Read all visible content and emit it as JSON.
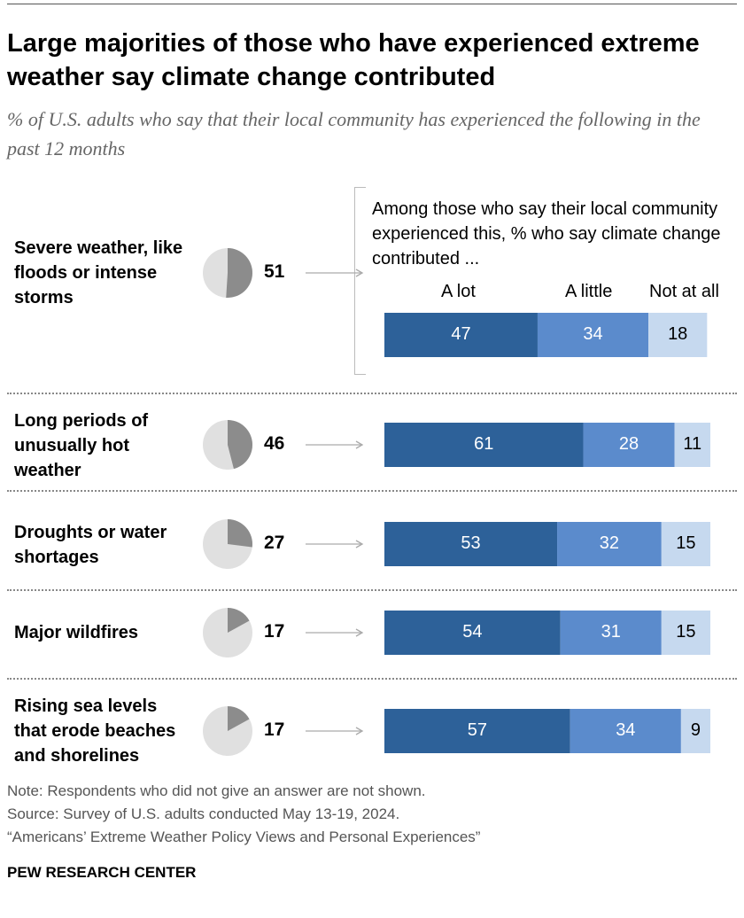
{
  "title": "Large majorities of those who have experienced extreme weather say climate change contributed",
  "subtitle": "% of U.S. adults who say that their local community has experienced the following in the past 12 months",
  "intro": "Among those who say their local community experienced this, % who say climate change contributed ...",
  "chart_data": {
    "type": "bar",
    "stacked": true,
    "categories": [
      "Severe weather, like floods or intense storms",
      "Long periods of unusually hot weather",
      "Droughts or water shortages",
      "Major wildfires",
      "Rising sea levels that erode beaches and shorelines"
    ],
    "experienced": [
      51,
      46,
      27,
      17,
      17
    ],
    "series": [
      {
        "name": "A lot",
        "values": [
          47,
          61,
          53,
          54,
          57
        ],
        "color": "#2d6199"
      },
      {
        "name": "A little",
        "values": [
          34,
          28,
          32,
          31,
          34
        ],
        "color": "#5b8bcc"
      },
      {
        "name": "Not at all",
        "values": [
          18,
          11,
          15,
          15,
          9
        ],
        "color": "#c6d9ef"
      }
    ],
    "pie_colors": {
      "share": "#8c8c8c",
      "rest": "#e0e0e0"
    }
  },
  "notes": [
    "Note: Respondents who did not give an answer are not shown.",
    "Source: Survey of U.S. adults conducted May 13-19, 2024.",
    "“Americans’ Extreme Weather Policy Views and Personal Experiences”"
  ],
  "brand": "PEW RESEARCH CENTER"
}
